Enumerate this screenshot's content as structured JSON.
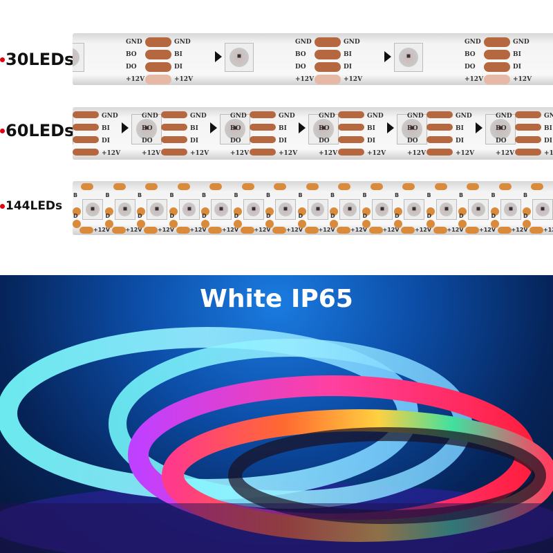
{
  "strips": [
    {
      "label": "30LEDs",
      "pads": [
        "GND",
        "BO",
        "DO",
        "+12V"
      ],
      "pads_right": [
        "GND",
        "BI",
        "DI",
        "+12V"
      ]
    },
    {
      "label": "60LEDs",
      "pads": [
        "GND",
        "BO",
        "DO",
        "+12V"
      ],
      "pads_right": [
        "GND",
        "BI",
        "DI",
        "+12V"
      ]
    },
    {
      "label": "144LEDs",
      "pads": [
        "B",
        "D",
        "+12V"
      ]
    }
  ],
  "photo": {
    "title": "White IP65"
  },
  "colors": {
    "bullet": "#e00010",
    "pad": "#b5683f",
    "background": "#0c4ea8"
  }
}
